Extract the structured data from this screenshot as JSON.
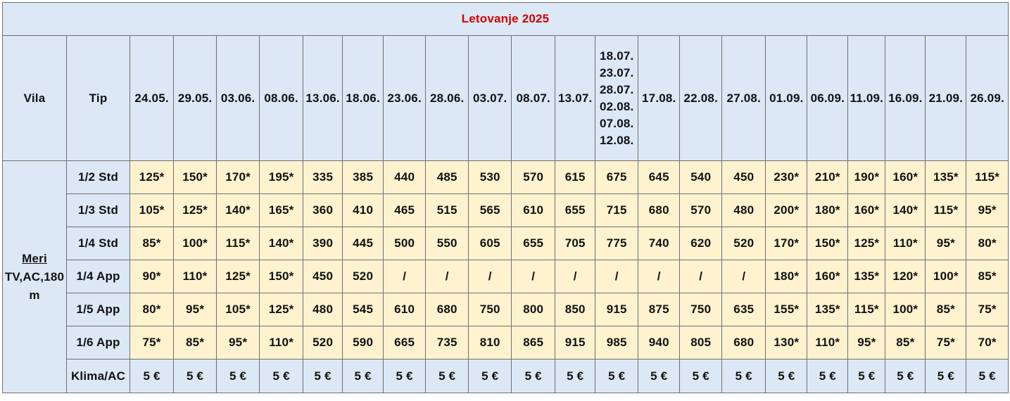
{
  "title": "Letovanje 2025",
  "headers": {
    "vila": "Vila",
    "tip": "Tip",
    "dates": [
      "24.05.",
      "29.05.",
      "03.06.",
      "08.06.",
      "13.06.",
      "18.06.",
      "23.06.",
      "28.06.",
      "03.07.",
      "08.07.",
      "13.07.",
      [
        "18.07.",
        "23.07.",
        "28.07.",
        "02.08.",
        "07.08.",
        "12.08."
      ],
      "17.08.",
      "22.08.",
      "27.08.",
      "01.09.",
      "06.09.",
      "11.09.",
      "16.09.",
      "21.09.",
      "26.09."
    ]
  },
  "vila": {
    "name": "Meri",
    "features": "TV,AC,180",
    "distance_unit": "m"
  },
  "rows": [
    {
      "tip": "1/2 Std",
      "values": [
        "125*",
        "150*",
        "170*",
        "195*",
        "335",
        "385",
        "440",
        "485",
        "530",
        "570",
        "615",
        "675",
        "645",
        "540",
        "450",
        "230*",
        "210*",
        "190*",
        "160*",
        "135*",
        "115*"
      ]
    },
    {
      "tip": "1/3 Std",
      "values": [
        "105*",
        "125*",
        "140*",
        "165*",
        "360",
        "410",
        "465",
        "515",
        "565",
        "610",
        "655",
        "715",
        "680",
        "570",
        "480",
        "200*",
        "180*",
        "160*",
        "140*",
        "115*",
        "95*"
      ]
    },
    {
      "tip": "1/4 Std",
      "values": [
        "85*",
        "100*",
        "115*",
        "140*",
        "390",
        "445",
        "500",
        "550",
        "605",
        "655",
        "705",
        "775",
        "740",
        "620",
        "520",
        "170*",
        "150*",
        "125*",
        "110*",
        "95*",
        "80*"
      ]
    },
    {
      "tip": "1/4 App",
      "values": [
        "90*",
        "110*",
        "125*",
        "150*",
        "450",
        "520",
        "/",
        "/",
        "/",
        "/",
        "/",
        "/",
        "/",
        "/",
        "/",
        "180*",
        "160*",
        "135*",
        "120*",
        "100*",
        "85*"
      ]
    },
    {
      "tip": "1/5 App",
      "values": [
        "80*",
        "95*",
        "105*",
        "125*",
        "480",
        "545",
        "610",
        "680",
        "750",
        "800",
        "850",
        "915",
        "875",
        "750",
        "635",
        "155*",
        "135*",
        "115*",
        "100*",
        "85*",
        "75*"
      ]
    },
    {
      "tip": "1/6 App",
      "values": [
        "75*",
        "85*",
        "95*",
        "110*",
        "520",
        "590",
        "665",
        "735",
        "810",
        "865",
        "915",
        "985",
        "940",
        "805",
        "680",
        "130*",
        "110*",
        "95*",
        "85*",
        "75*",
        "70*"
      ]
    }
  ],
  "ac_row": {
    "tip": "Klima/AC",
    "values": [
      "5 €",
      "5 €",
      "5 €",
      "5 €",
      "5 €",
      "5 €",
      "5 €",
      "5 €",
      "5 €",
      "5 €",
      "5 €",
      "5 €",
      "5 €",
      "5 €",
      "5 €",
      "5 €",
      "5 €",
      "5 €",
      "5 €",
      "5 €",
      "5 €"
    ]
  }
}
